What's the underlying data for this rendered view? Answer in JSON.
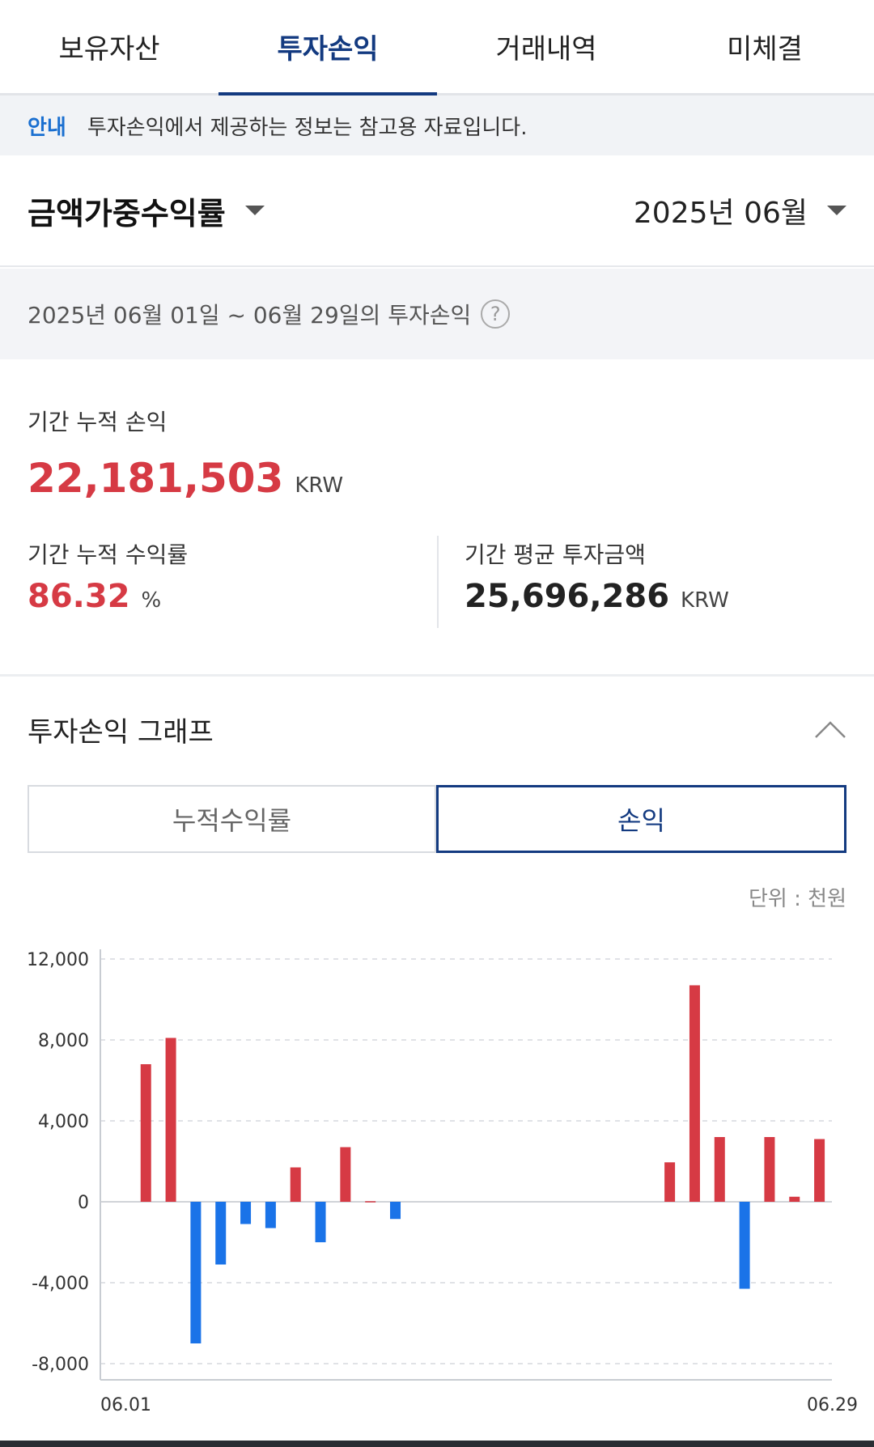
{
  "tabs": [
    {
      "label": "보유자산",
      "active": false
    },
    {
      "label": "투자손익",
      "active": true
    },
    {
      "label": "거래내역",
      "active": false
    },
    {
      "label": "미체결",
      "active": false
    }
  ],
  "notice": {
    "tag": "안내",
    "message": "투자손익에서 제공하는 정보는 참고용 자료입니다."
  },
  "selector": {
    "metric": "금액가중수익률",
    "month": "2025년 06월"
  },
  "period_text": "2025년 06월 01일 ~ 06월 29일의 투자손익",
  "help_icon": "question-circle-icon",
  "summary": {
    "cum_pl_label": "기간 누적 손익",
    "cum_pl_value": "22,181,503",
    "cum_pl_unit": "KRW",
    "cum_rate_label": "기간 누적 수익률",
    "cum_rate_value": "86.32",
    "cum_rate_unit": "%",
    "avg_invest_label": "기간 평균 투자금액",
    "avg_invest_value": "25,696,286",
    "avg_invest_unit": "KRW"
  },
  "graph": {
    "title": "투자손익 그래프",
    "collapse_icon": "chevron-up-icon",
    "segments": [
      {
        "label": "누적수익률",
        "active": false
      },
      {
        "label": "손익",
        "active": true
      }
    ],
    "unit_note": "단위 : 천원"
  },
  "colors": {
    "accent": "#133a80",
    "positive": "#d63a44",
    "negative": "#1a73e8",
    "info": "#1a6fd0"
  },
  "chart_data": {
    "type": "bar",
    "x": [
      "06.01",
      "06.02",
      "06.03",
      "06.04",
      "06.05",
      "06.06",
      "06.07",
      "06.08",
      "06.09",
      "06.10",
      "06.11",
      "06.12",
      "06.13",
      "06.14",
      "06.15",
      "06.16",
      "06.17",
      "06.18",
      "06.19",
      "06.20",
      "06.21",
      "06.22",
      "06.23",
      "06.24",
      "06.25",
      "06.26",
      "06.27",
      "06.28",
      "06.29"
    ],
    "values": [
      0,
      6800,
      8100,
      -7000,
      -3100,
      -1100,
      -1300,
      1700,
      -2000,
      2700,
      30,
      -850,
      0,
      0,
      0,
      0,
      0,
      0,
      0,
      0,
      0,
      0,
      1950,
      10700,
      3200,
      -4300,
      3200,
      250,
      3100
    ],
    "yticks": [
      "12,000",
      "8,000",
      "4,000",
      "0",
      "-4,000",
      "-8,000"
    ],
    "ytick_values": [
      12000,
      8000,
      4000,
      0,
      -4000,
      -8000
    ],
    "ylim": [
      -8000,
      12000
    ],
    "xtick_labels": [
      "06.01",
      "06.29"
    ],
    "unit": "천원",
    "grid": true
  }
}
